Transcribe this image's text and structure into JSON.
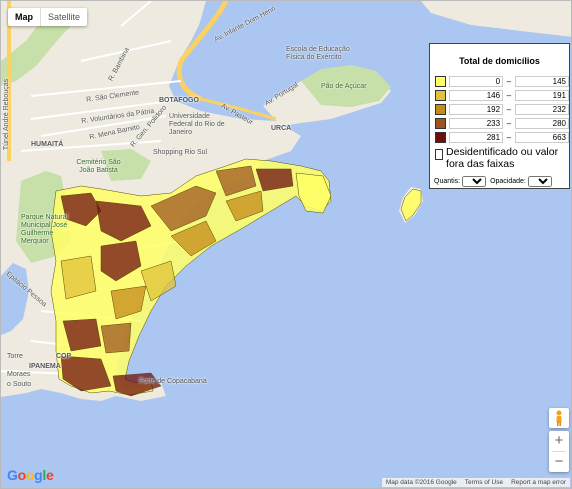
{
  "map_type": {
    "map_label": "Map",
    "satellite_label": "Satellite",
    "active": "Map"
  },
  "legend": {
    "title": "Total de domicílios",
    "classes": [
      {
        "from": "0",
        "to": "145",
        "color": "#ffff66"
      },
      {
        "from": "146",
        "to": "191",
        "color": "#e0c33a"
      },
      {
        "from": "192",
        "to": "232",
        "color": "#c48a1a"
      },
      {
        "from": "233",
        "to": "280",
        "color": "#9c5520"
      },
      {
        "from": "281",
        "to": "663",
        "color": "#6e0f0f"
      }
    ],
    "dash": "–",
    "other_label": "Desidentificado ou valor fora das faixas",
    "quantis_label": "Quantis:",
    "opacidade_label": "Opacidade:"
  },
  "places": {
    "infante": "Av. Infante Dom Henri",
    "escola": "Escola de Educação Física do Exército",
    "pao": "Pão de Açúcar",
    "bambina": "R. Bambina",
    "clemente": "R. São Clemente",
    "voluntarios": "R. Voluntários da Pátria",
    "mena": "R. Mena Barreto",
    "general": "R. Gen. Polidoro",
    "botafogo": "BOTAFOGO",
    "universidade": "Universidade Federal do Rio de Janeiro",
    "pasteur": "Av. Pasteur",
    "portugal": "Av. Portugal",
    "urca": "URCA",
    "humaita": "HUMAITÁ",
    "shopping": "Shopping Rio Sul",
    "cemiterio": "Cemitério São João Batista",
    "parque": "Parque Natural Municipal José Guilherme Merquior",
    "tunel": "Túnel André Rebouças",
    "lagoa": "Epitácio Pessoa",
    "ipanema": "IPANEMA",
    "copa": "COP",
    "forte": "Forte de Copacabana",
    "torre": "Torre",
    "moraes": "Moraes",
    "souto": "o Souto"
  },
  "logo": "Google",
  "footer": {
    "data": "Map data ©2016 Google",
    "terms": "Terms of Use",
    "report": "Report a map error"
  },
  "zoom": {
    "in": "+",
    "out": "−"
  },
  "colors": {
    "water": "#abc6f0",
    "land": "#eeeadf",
    "park": "#c7dfa9",
    "road": "#ffffff",
    "highway": "#fbd262",
    "outline": "#5a4a00"
  }
}
